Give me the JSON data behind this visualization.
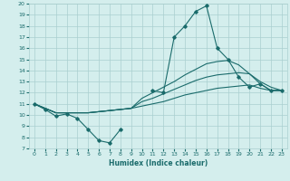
{
  "xlabel": "Humidex (Indice chaleur)",
  "background_color": "#d4eeed",
  "grid_color": "#aacfcf",
  "line_color": "#1a6b6b",
  "xlim": [
    -0.5,
    23.5
  ],
  "ylim": [
    7,
    20
  ],
  "yticks": [
    7,
    8,
    9,
    10,
    11,
    12,
    13,
    14,
    15,
    16,
    17,
    18,
    19,
    20
  ],
  "xticks": [
    0,
    1,
    2,
    3,
    4,
    5,
    6,
    7,
    8,
    9,
    10,
    11,
    12,
    13,
    14,
    15,
    16,
    17,
    18,
    19,
    20,
    21,
    22,
    23
  ],
  "series": [
    {
      "x": [
        0,
        1,
        2,
        3,
        4,
        5,
        6,
        7,
        8,
        9,
        10,
        11,
        12,
        13,
        14,
        15,
        16,
        17,
        18,
        19,
        20,
        21,
        22,
        23
      ],
      "y": [
        11.0,
        10.5,
        9.9,
        10.1,
        9.7,
        8.7,
        7.7,
        7.5,
        8.7,
        null,
        null,
        12.2,
        12.0,
        17.0,
        18.0,
        19.3,
        19.8,
        16.0,
        15.0,
        13.4,
        12.5,
        12.8,
        12.2,
        12.2
      ],
      "marker": "D",
      "markersize": 1.8,
      "linewidth": 0.8
    },
    {
      "x": [
        0,
        1,
        2,
        3,
        4,
        5,
        6,
        7,
        8,
        9,
        10,
        11,
        12,
        13,
        14,
        15,
        16,
        17,
        18,
        19,
        20,
        21,
        22,
        23
      ],
      "y": [
        11.0,
        10.6,
        10.2,
        10.2,
        10.2,
        10.2,
        10.3,
        10.4,
        10.5,
        10.6,
        10.8,
        11.0,
        11.2,
        11.5,
        11.8,
        12.0,
        12.2,
        12.4,
        12.5,
        12.6,
        12.7,
        12.4,
        12.2,
        12.2
      ],
      "marker": null,
      "markersize": 0,
      "linewidth": 0.8
    },
    {
      "x": [
        0,
        1,
        2,
        3,
        4,
        5,
        6,
        7,
        8,
        9,
        10,
        11,
        12,
        13,
        14,
        15,
        16,
        17,
        18,
        19,
        20,
        21,
        22,
        23
      ],
      "y": [
        11.0,
        10.6,
        10.2,
        10.2,
        10.2,
        10.2,
        10.3,
        10.4,
        10.5,
        10.6,
        11.2,
        11.5,
        11.9,
        12.3,
        12.7,
        13.1,
        13.4,
        13.6,
        13.7,
        13.8,
        13.7,
        13.0,
        12.5,
        12.2
      ],
      "marker": null,
      "markersize": 0,
      "linewidth": 0.8
    },
    {
      "x": [
        0,
        1,
        2,
        3,
        4,
        5,
        6,
        7,
        8,
        9,
        10,
        11,
        12,
        13,
        14,
        15,
        16,
        17,
        18,
        19,
        20,
        21,
        22,
        23
      ],
      "y": [
        11.0,
        10.6,
        10.2,
        10.2,
        10.2,
        10.2,
        10.3,
        10.4,
        10.5,
        10.6,
        11.5,
        12.0,
        12.5,
        13.0,
        13.6,
        14.1,
        14.6,
        14.8,
        14.9,
        14.5,
        13.7,
        12.8,
        12.2,
        12.2
      ],
      "marker": null,
      "markersize": 0,
      "linewidth": 0.8
    }
  ]
}
